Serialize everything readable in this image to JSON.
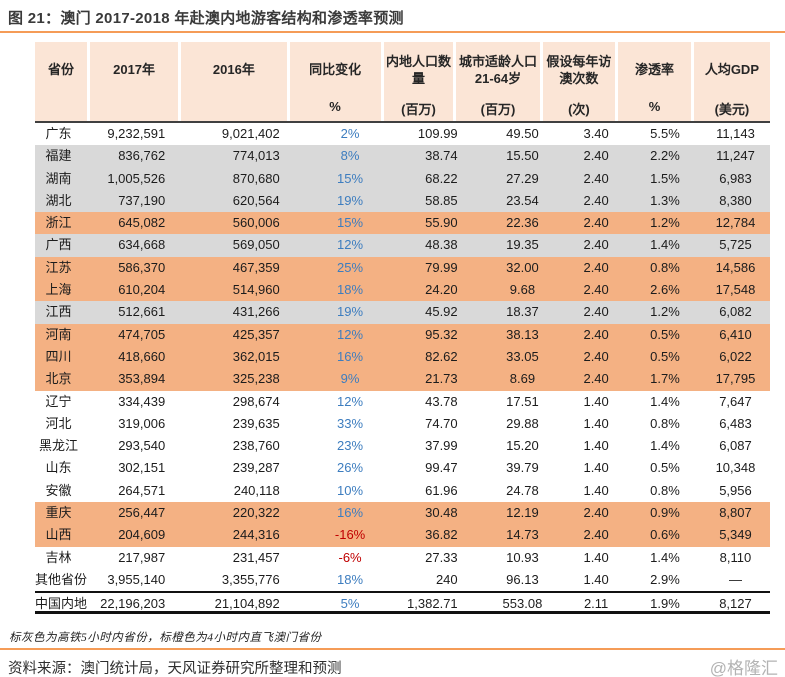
{
  "title": "图 21：澳门 2017-2018 年赴澳内地游客结构和渗透率预测",
  "footnote": "标灰色为高铁5小时内省份，标橙色为4小时内直飞澳门省份",
  "source": "资料来源：澳门统计局，天风证券研究所整理和预测",
  "watermark": "@格隆汇",
  "colors": {
    "header_bg": "#fbe5d6",
    "orange_highlight": "#f4b183",
    "gray_highlight": "#d9d9d9",
    "positive_blue": "#3d7dbf",
    "negative_red": "#c00000",
    "rule_orange": "#f59c57"
  },
  "chart_data": {
    "type": "table",
    "title": "图 21：澳门 2017-2018 年赴澳内地游客结构和渗透率预测",
    "legend_note": "灰色 = 高铁5小时内省份；橙色 = 4小时内直飞澳门省份",
    "columns": [
      {
        "label": "省份",
        "unit": ""
      },
      {
        "label": "2017年",
        "unit": ""
      },
      {
        "label": "2016年",
        "unit": ""
      },
      {
        "label": "同比变化",
        "unit": "%"
      },
      {
        "label": "内地人口数量",
        "unit": "(百万)"
      },
      {
        "label": "城市适龄人口\n21-64岁",
        "unit": "(百万)"
      },
      {
        "label": "假设每年访\n澳次数",
        "unit": "(次)"
      },
      {
        "label": "渗透率",
        "unit": "%"
      },
      {
        "label": "人均GDP",
        "unit": "(美元)"
      }
    ],
    "rows": [
      {
        "cells": [
          "广东",
          "9,232,591",
          "9,021,402",
          "2%",
          "109.99",
          "49.50",
          "3.40",
          "5.5%",
          "11,143"
        ],
        "highlight": "white"
      },
      {
        "cells": [
          "福建",
          "836,762",
          "774,013",
          "8%",
          "38.74",
          "15.50",
          "2.40",
          "2.2%",
          "11,247"
        ],
        "highlight": "gray"
      },
      {
        "cells": [
          "湖南",
          "1,005,526",
          "870,680",
          "15%",
          "68.22",
          "27.29",
          "2.40",
          "1.5%",
          "6,983"
        ],
        "highlight": "gray"
      },
      {
        "cells": [
          "湖北",
          "737,190",
          "620,564",
          "19%",
          "58.85",
          "23.54",
          "2.40",
          "1.3%",
          "8,380"
        ],
        "highlight": "gray"
      },
      {
        "cells": [
          "浙江",
          "645,082",
          "560,006",
          "15%",
          "55.90",
          "22.36",
          "2.40",
          "1.2%",
          "12,784"
        ],
        "highlight": "orange"
      },
      {
        "cells": [
          "广西",
          "634,668",
          "569,050",
          "12%",
          "48.38",
          "19.35",
          "2.40",
          "1.4%",
          "5,725"
        ],
        "highlight": "gray"
      },
      {
        "cells": [
          "江苏",
          "586,370",
          "467,359",
          "25%",
          "79.99",
          "32.00",
          "2.40",
          "0.8%",
          "14,586"
        ],
        "highlight": "orange"
      },
      {
        "cells": [
          "上海",
          "610,204",
          "514,960",
          "18%",
          "24.20",
          "9.68",
          "2.40",
          "2.6%",
          "17,548"
        ],
        "highlight": "orange"
      },
      {
        "cells": [
          "江西",
          "512,661",
          "431,266",
          "19%",
          "45.92",
          "18.37",
          "2.40",
          "1.2%",
          "6,082"
        ],
        "highlight": "gray"
      },
      {
        "cells": [
          "河南",
          "474,705",
          "425,357",
          "12%",
          "95.32",
          "38.13",
          "2.40",
          "0.5%",
          "6,410"
        ],
        "highlight": "orange"
      },
      {
        "cells": [
          "四川",
          "418,660",
          "362,015",
          "16%",
          "82.62",
          "33.05",
          "2.40",
          "0.5%",
          "6,022"
        ],
        "highlight": "orange"
      },
      {
        "cells": [
          "北京",
          "353,894",
          "325,238",
          "9%",
          "21.73",
          "8.69",
          "2.40",
          "1.7%",
          "17,795"
        ],
        "highlight": "orange"
      },
      {
        "cells": [
          "辽宁",
          "334,439",
          "298,674",
          "12%",
          "43.78",
          "17.51",
          "1.40",
          "1.4%",
          "7,647"
        ],
        "highlight": "white"
      },
      {
        "cells": [
          "河北",
          "319,006",
          "239,635",
          "33%",
          "74.70",
          "29.88",
          "1.40",
          "0.8%",
          "6,483"
        ],
        "highlight": "white"
      },
      {
        "cells": [
          "黑龙江",
          "293,540",
          "238,760",
          "23%",
          "37.99",
          "15.20",
          "1.40",
          "1.4%",
          "6,087"
        ],
        "highlight": "white"
      },
      {
        "cells": [
          "山东",
          "302,151",
          "239,287",
          "26%",
          "99.47",
          "39.79",
          "1.40",
          "0.5%",
          "10,348"
        ],
        "highlight": "white"
      },
      {
        "cells": [
          "安徽",
          "264,571",
          "240,118",
          "10%",
          "61.96",
          "24.78",
          "1.40",
          "0.8%",
          "5,956"
        ],
        "highlight": "white"
      },
      {
        "cells": [
          "重庆",
          "256,447",
          "220,322",
          "16%",
          "30.48",
          "12.19",
          "2.40",
          "0.9%",
          "8,807"
        ],
        "highlight": "orange"
      },
      {
        "cells": [
          "山西",
          "204,609",
          "244,316",
          "-16%",
          "36.82",
          "14.73",
          "2.40",
          "0.6%",
          "5,349"
        ],
        "highlight": "orange"
      },
      {
        "cells": [
          "吉林",
          "217,987",
          "231,457",
          "-6%",
          "27.33",
          "10.93",
          "1.40",
          "1.4%",
          "8,110"
        ],
        "highlight": "white"
      },
      {
        "cells": [
          "其他省份",
          "3,955,140",
          "3,355,776",
          "18%",
          "240",
          "96.13",
          "1.40",
          "2.9%",
          "—"
        ],
        "highlight": "white"
      },
      {
        "cells": [
          "中国内地",
          "22,196,203",
          "21,104,892",
          "5%",
          "1,382.71",
          "553.08",
          "2.11",
          "1.9%",
          "8,127"
        ],
        "highlight": "total"
      }
    ]
  }
}
